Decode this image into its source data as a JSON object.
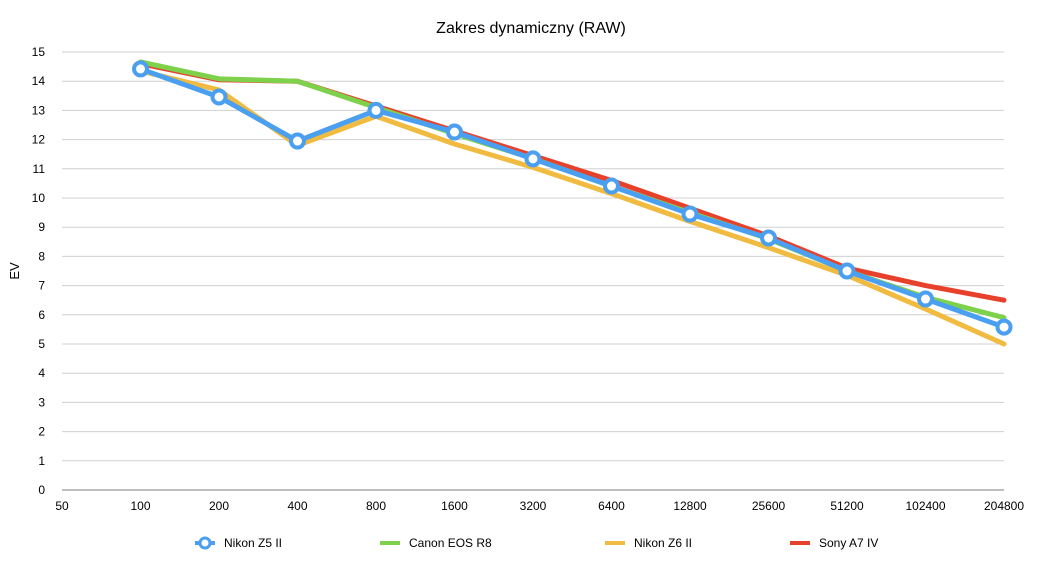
{
  "chart_data": {
    "type": "line",
    "title": "Zakres dynamiczny (RAW)",
    "xlabel": "",
    "ylabel": "EV",
    "ylim": [
      0,
      15
    ],
    "yticks": [
      "0",
      "1",
      "2",
      "3",
      "4",
      "5",
      "6",
      "7",
      "8",
      "9",
      "10",
      "11",
      "12",
      "13",
      "14",
      "15"
    ],
    "categories": [
      "50",
      "100",
      "200",
      "400",
      "800",
      "1600",
      "3200",
      "6400",
      "12800",
      "25600",
      "51200",
      "102400",
      "204800"
    ],
    "grid": true,
    "legend_position": "bottom",
    "series": [
      {
        "name": "Sony A7 IV",
        "color": "#e8412b",
        "markers": false,
        "values": [
          null,
          14.6,
          14.05,
          14.0,
          13.15,
          12.3,
          11.45,
          10.6,
          9.65,
          8.7,
          7.6,
          7.0,
          6.5
        ]
      },
      {
        "name": "Nikon Z6 II",
        "color": "#f0bb40",
        "markers": false,
        "values": [
          null,
          14.35,
          13.7,
          11.8,
          12.8,
          11.85,
          11.05,
          10.15,
          9.2,
          8.3,
          7.35,
          6.2,
          5.0
        ]
      },
      {
        "name": "Canon EOS R8",
        "color": "#7ed14b",
        "markers": false,
        "values": [
          null,
          14.66,
          14.08,
          14.0,
          13.1,
          12.2,
          11.35,
          10.4,
          9.5,
          8.6,
          7.5,
          6.6,
          5.9
        ]
      },
      {
        "name": "Nikon Z5 II",
        "color": "#4a9ff0",
        "markers": true,
        "values": [
          null,
          14.42,
          13.46,
          11.95,
          13.0,
          12.26,
          11.34,
          10.41,
          9.45,
          8.63,
          7.5,
          6.54,
          5.58
        ]
      }
    ],
    "legend_order": [
      "Nikon Z5 II",
      "Canon EOS R8",
      "Nikon Z6 II",
      "Sony A7 IV"
    ]
  }
}
